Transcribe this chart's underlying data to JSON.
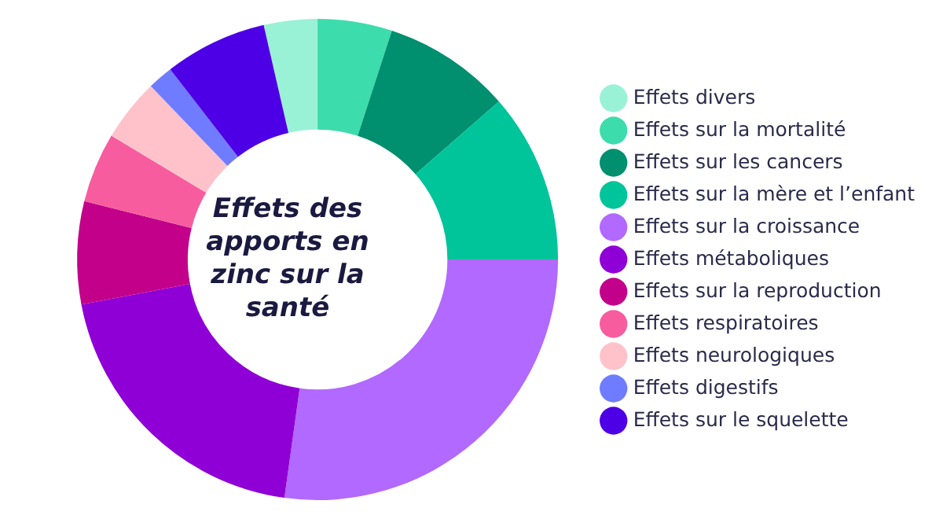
{
  "chart_data": {
    "type": "donut",
    "title": "Effets des apports en zinc sur la santé",
    "categories": [
      "Effets divers",
      "Effets sur la mortalité",
      "Effets sur les cancers",
      "Effets sur la mère et l’enfant",
      "Effets sur la croissance",
      "Effets métaboliques",
      "Effets sur la reproduction",
      "Effets respiratoires",
      "Effets neurologiques",
      "Effets digestifs",
      "Effets sur le squelette"
    ],
    "values": [
      3.6,
      5,
      8.6,
      11.4,
      27.2,
      19.8,
      6.9,
      4.7,
      4.2,
      1.7,
      6.9
    ],
    "colors": [
      "#9af2d6",
      "#3ddcac",
      "#008f6f",
      "#00c49a",
      "#b169ff",
      "#8f00d6",
      "#c2008a",
      "#f75c9e",
      "#ffc2cb",
      "#6f7cff",
      "#4d00e6"
    ],
    "legend": "right"
  }
}
